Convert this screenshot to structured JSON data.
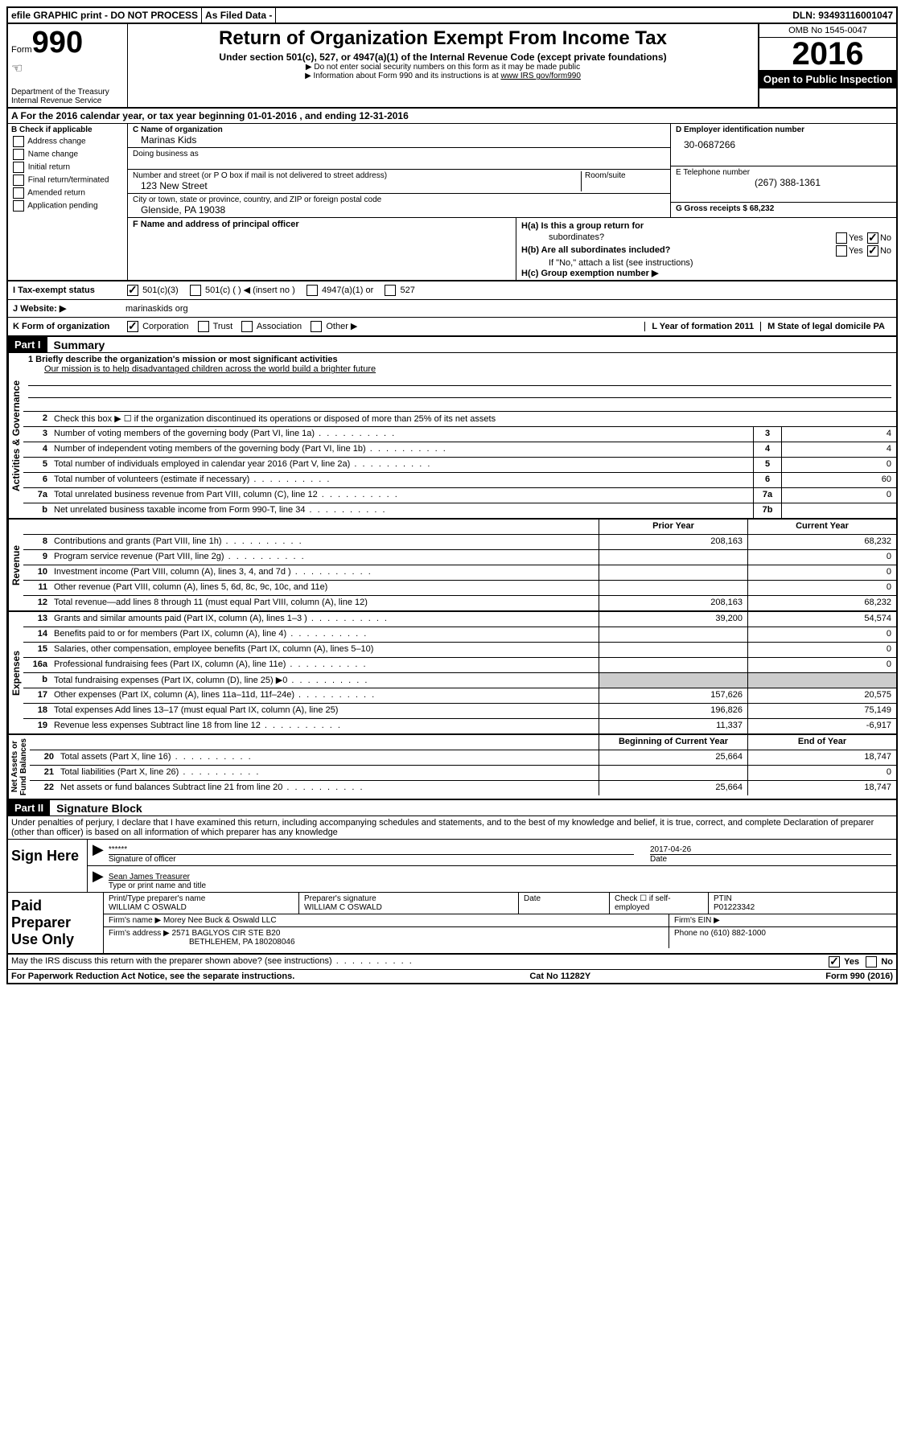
{
  "topbar": {
    "efile": "efile GRAPHIC print - DO NOT PROCESS",
    "asfiled": "As Filed Data -",
    "dln": "DLN: 93493116001047"
  },
  "header": {
    "form_label": "Form",
    "form_number": "990",
    "dept": "Department of the Treasury",
    "irs": "Internal Revenue Service",
    "title": "Return of Organization Exempt From Income Tax",
    "subtitle": "Under section 501(c), 527, or 4947(a)(1) of the Internal Revenue Code (except private foundations)",
    "note1": "▶ Do not enter social security numbers on this form as it may be made public",
    "note2": "▶ Information about Form 990 and its instructions is at ",
    "link": "www IRS gov/form990",
    "omb": "OMB No 1545-0047",
    "year": "2016",
    "open": "Open to Public Inspection"
  },
  "section_a": "A  For the 2016 calendar year, or tax year beginning 01-01-2016   , and ending 12-31-2016",
  "col_b": {
    "title": "B Check if applicable",
    "items": [
      "Address change",
      "Name change",
      "Initial return",
      "Final return/terminated",
      "Amended return",
      "Application pending"
    ]
  },
  "col_c": {
    "name_label": "C Name of organization",
    "name": "Marinas Kids",
    "dba_label": "Doing business as",
    "addr_label": "Number and street (or P O  box if mail is not delivered to street address)",
    "room_label": "Room/suite",
    "addr": "123 New Street",
    "city_label": "City or town, state or province, country, and ZIP or foreign postal code",
    "city": "Glenside, PA  19038"
  },
  "col_d": {
    "ein_label": "D Employer identification number",
    "ein": "30-0687266",
    "tel_label": "E Telephone number",
    "tel": "(267) 388-1361",
    "gross_label": "G Gross receipts $ 68,232"
  },
  "col_f": {
    "label": "F  Name and address of principal officer"
  },
  "col_h": {
    "ha": "H(a)  Is this a group return for",
    "ha2": "subordinates?",
    "hb": "H(b) Are all subordinates included?",
    "hc_note": "If \"No,\" attach a list  (see instructions)",
    "hc": "H(c) Group exemption number ▶"
  },
  "status": {
    "label": "I  Tax-exempt status",
    "opts": [
      "501(c)(3)",
      "501(c) (  ) ◀ (insert no )",
      "4947(a)(1) or",
      "527"
    ]
  },
  "website": {
    "label": "J  Website: ▶",
    "value": "marinaskids org"
  },
  "form_org": {
    "label": "K Form of organization",
    "opts": [
      "Corporation",
      "Trust",
      "Association",
      "Other ▶"
    ],
    "l_label": "L Year of formation  2011",
    "m_label": "M State of legal domicile  PA"
  },
  "part1": {
    "header": "Part I",
    "title": "Summary",
    "line1_label": "1 Briefly describe the organization's mission or most significant activities",
    "mission": "Our mission is to help disadvantaged children across the world build a brighter future",
    "line2": "Check this box ▶ ☐  if the organization discontinued its operations or disposed of more than 25% of its net assets",
    "lines_gov": [
      {
        "n": "3",
        "d": "Number of voting members of the governing body (Part VI, line 1a)",
        "box": "3",
        "val": "4"
      },
      {
        "n": "4",
        "d": "Number of independent voting members of the governing body (Part VI, line 1b)",
        "box": "4",
        "val": "4"
      },
      {
        "n": "5",
        "d": "Total number of individuals employed in calendar year 2016 (Part V, line 2a)",
        "box": "5",
        "val": "0"
      },
      {
        "n": "6",
        "d": "Total number of volunteers (estimate if necessary)",
        "box": "6",
        "val": "60"
      },
      {
        "n": "7a",
        "d": "Total unrelated business revenue from Part VIII, column (C), line 12",
        "box": "7a",
        "val": "0"
      },
      {
        "n": "b",
        "d": "Net unrelated business taxable income from Form 990-T, line 34",
        "box": "7b",
        "val": ""
      }
    ],
    "year_header": {
      "prior": "Prior Year",
      "current": "Current Year"
    },
    "revenue": [
      {
        "n": "8",
        "d": "Contributions and grants (Part VIII, line 1h)",
        "p": "208,163",
        "c": "68,232"
      },
      {
        "n": "9",
        "d": "Program service revenue (Part VIII, line 2g)",
        "p": "",
        "c": "0"
      },
      {
        "n": "10",
        "d": "Investment income (Part VIII, column (A), lines 3, 4, and 7d )",
        "p": "",
        "c": "0"
      },
      {
        "n": "11",
        "d": "Other revenue (Part VIII, column (A), lines 5, 6d, 8c, 9c, 10c, and 11e)",
        "p": "",
        "c": "0"
      },
      {
        "n": "12",
        "d": "Total revenue—add lines 8 through 11 (must equal Part VIII, column (A), line 12)",
        "p": "208,163",
        "c": "68,232"
      }
    ],
    "expenses": [
      {
        "n": "13",
        "d": "Grants and similar amounts paid (Part IX, column (A), lines 1–3 )",
        "p": "39,200",
        "c": "54,574"
      },
      {
        "n": "14",
        "d": "Benefits paid to or for members (Part IX, column (A), line 4)",
        "p": "",
        "c": "0"
      },
      {
        "n": "15",
        "d": "Salaries, other compensation, employee benefits (Part IX, column (A), lines 5–10)",
        "p": "",
        "c": "0"
      },
      {
        "n": "16a",
        "d": "Professional fundraising fees (Part IX, column (A), line 11e)",
        "p": "",
        "c": "0"
      },
      {
        "n": "b",
        "d": "Total fundraising expenses (Part IX, column (D), line 25) ▶0",
        "p": "GRAY",
        "c": "GRAY"
      },
      {
        "n": "17",
        "d": "Other expenses (Part IX, column (A), lines 11a–11d, 11f–24e)",
        "p": "157,626",
        "c": "20,575"
      },
      {
        "n": "18",
        "d": "Total expenses  Add lines 13–17 (must equal Part IX, column (A), line 25)",
        "p": "196,826",
        "c": "75,149"
      },
      {
        "n": "19",
        "d": "Revenue less expenses  Subtract line 18 from line 12",
        "p": "11,337",
        "c": "-6,917"
      }
    ],
    "assets_header": {
      "prior": "Beginning of Current Year",
      "current": "End of Year"
    },
    "assets": [
      {
        "n": "20",
        "d": "Total assets (Part X, line 16)",
        "p": "25,664",
        "c": "18,747"
      },
      {
        "n": "21",
        "d": "Total liabilities (Part X, line 26)",
        "p": "",
        "c": "0"
      },
      {
        "n": "22",
        "d": "Net assets or fund balances  Subtract line 21 from line 20",
        "p": "25,664",
        "c": "18,747"
      }
    ]
  },
  "part2": {
    "header": "Part II",
    "title": "Signature Block",
    "declare": "Under penalties of perjury, I declare that I have examined this return, including accompanying schedules and statements, and to the best of my knowledge and belief, it is true, correct, and complete  Declaration of preparer (other than officer) is based on all information of which preparer has any knowledge",
    "sign_label": "Sign Here",
    "stars": "******",
    "sig_officer": "Signature of officer",
    "date": "2017-04-26",
    "date_label": "Date",
    "name_title": "Sean James Treasurer",
    "type_label": "Type or print name and title",
    "prep_label": "Paid Preparer Use Only",
    "prep_name_label": "Print/Type preparer's name",
    "prep_name": "WILLIAM C OSWALD",
    "prep_sig_label": "Preparer's signature",
    "prep_sig": "WILLIAM C OSWALD",
    "prep_date_label": "Date",
    "check_label": "Check ☐ if self-employed",
    "ptin_label": "PTIN",
    "ptin": "P01223342",
    "firm_name_label": "Firm's name    ▶",
    "firm_name": "Morey Nee Buck & Oswald LLC",
    "firm_ein_label": "Firm's EIN ▶",
    "firm_addr_label": "Firm's address ▶",
    "firm_addr": "2571 BAGLYOS CIR STE B20",
    "firm_city": "BETHLEHEM, PA  180208046",
    "phone_label": "Phone no  (610) 882-1000",
    "discuss": "May the IRS discuss this return with the preparer shown above? (see instructions)",
    "paperwork": "For Paperwork Reduction Act Notice, see the separate instructions.",
    "cat": "Cat  No  11282Y",
    "form_bottom": "Form 990 (2016)"
  }
}
